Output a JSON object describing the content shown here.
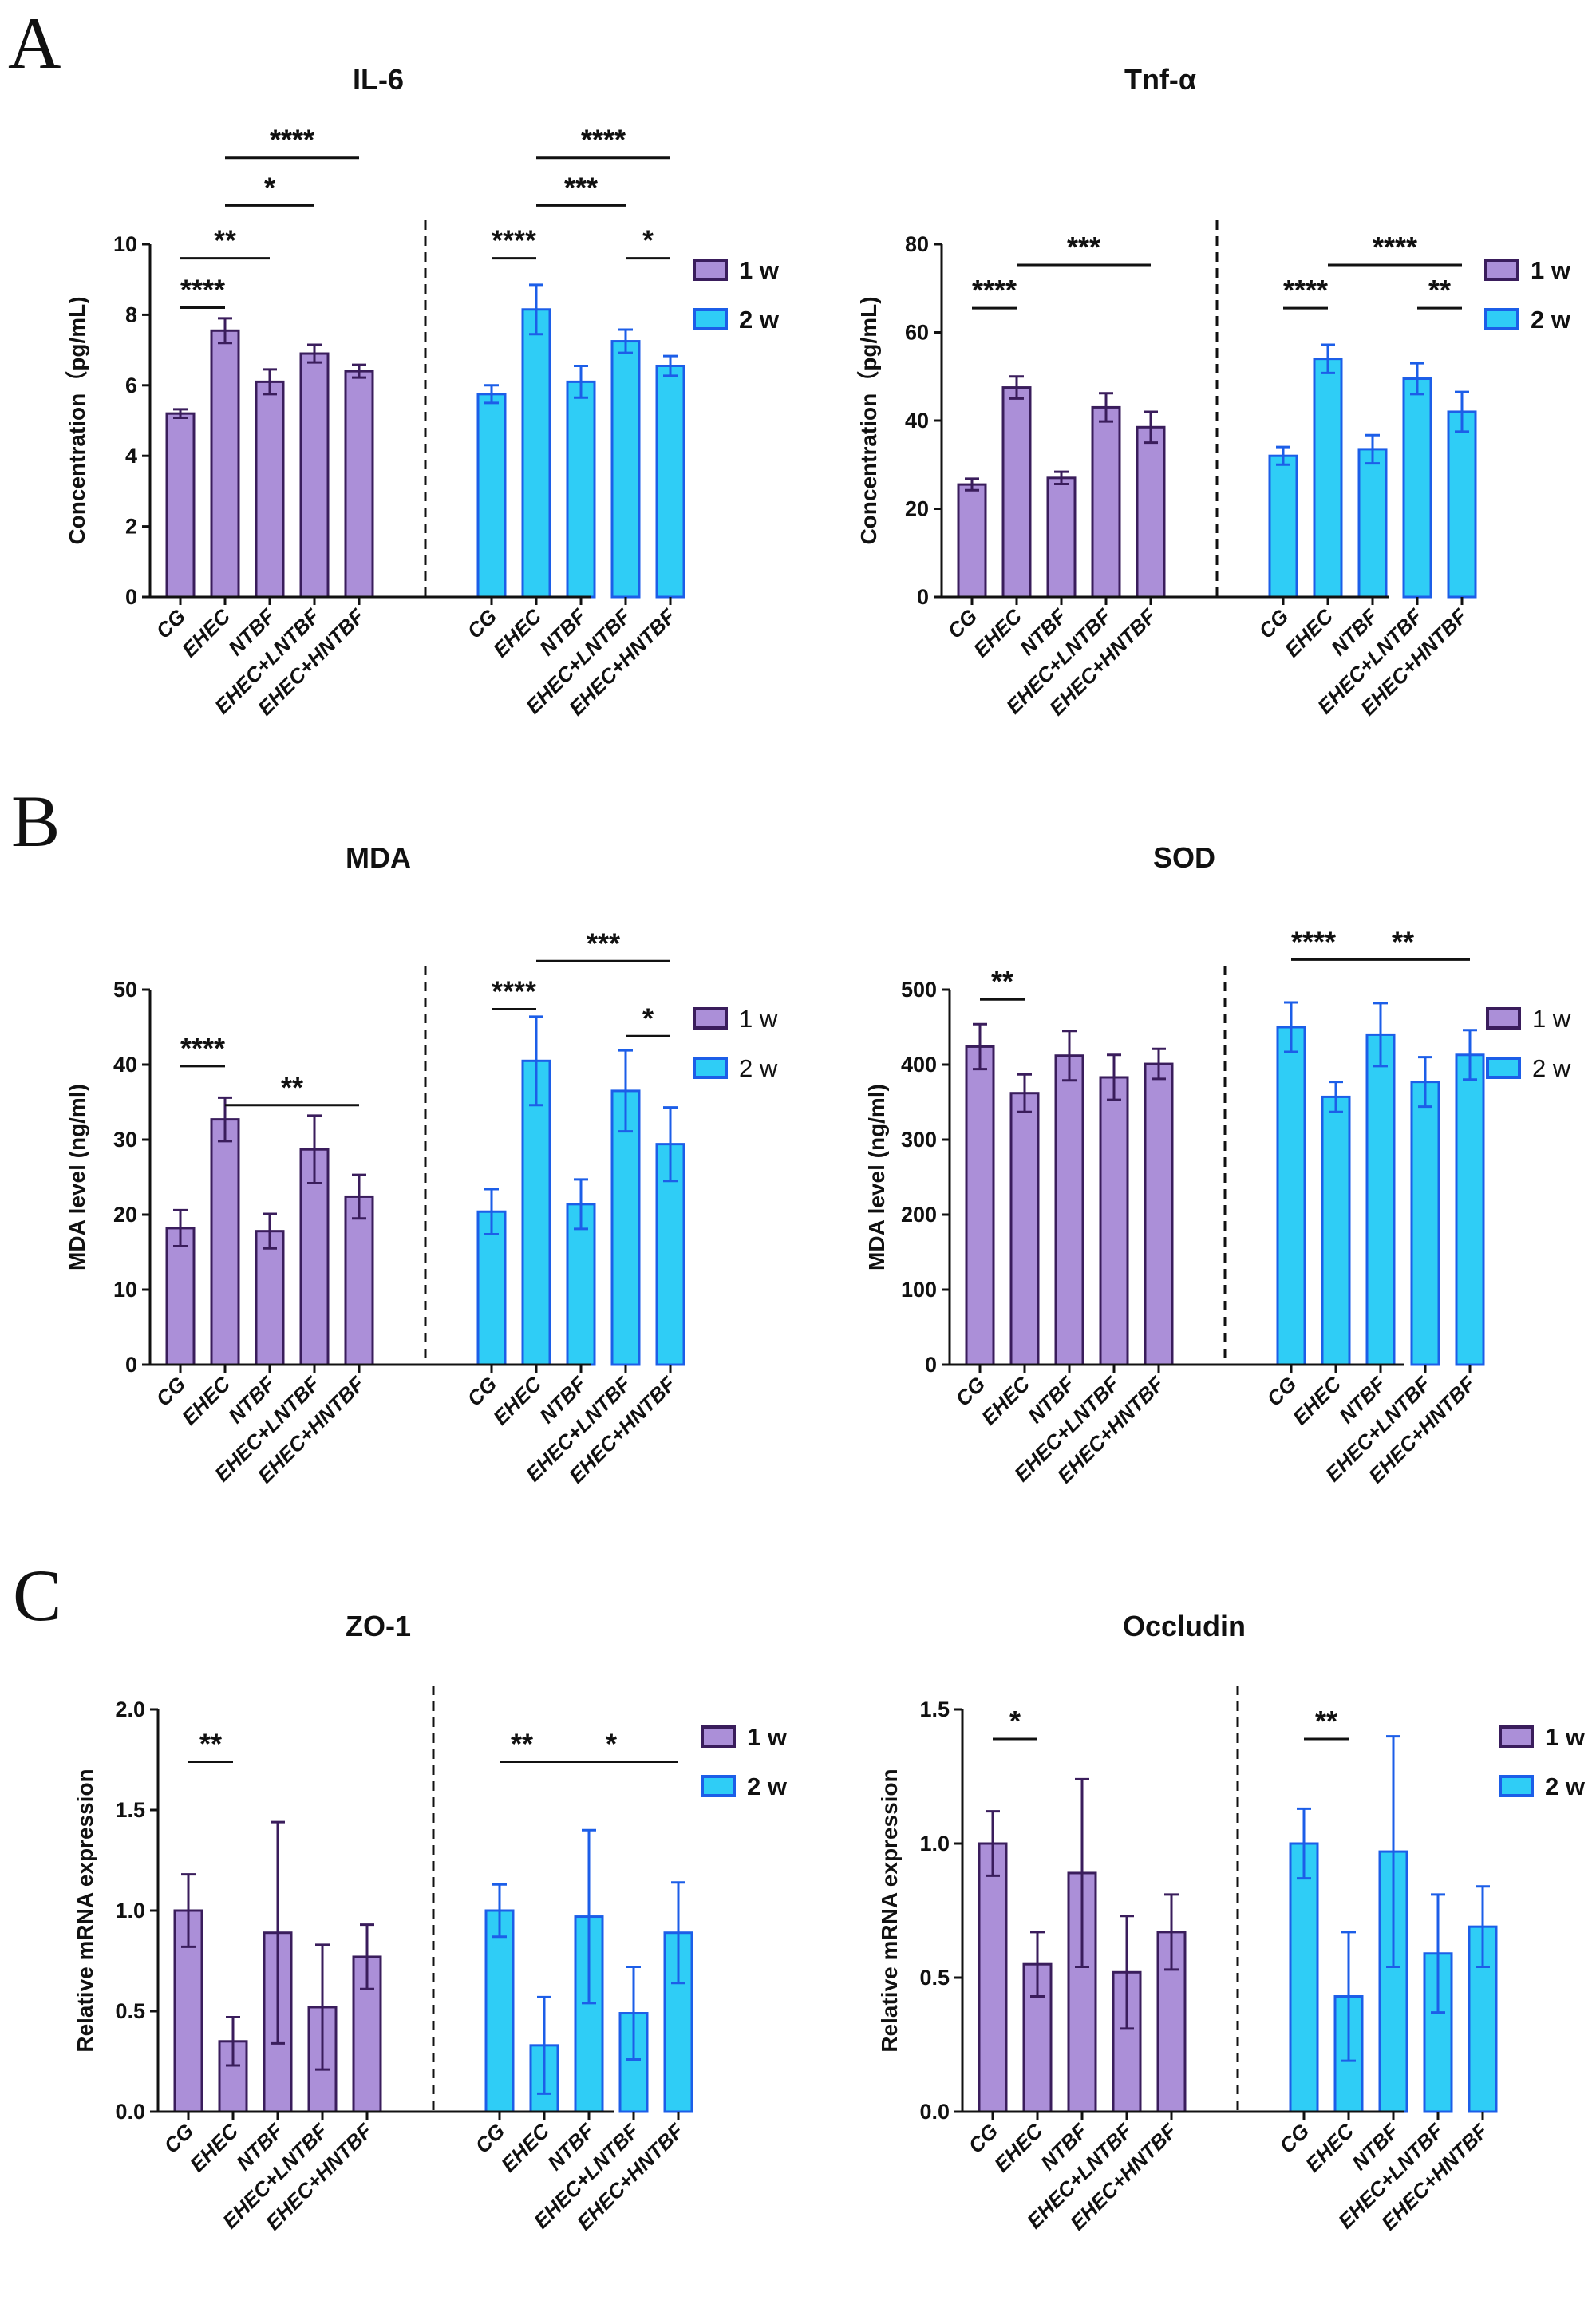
{
  "panel_labels": [
    "A",
    "B",
    "C"
  ],
  "colors": {
    "w1_fill": "#ab8fd8",
    "w1_edge": "#3a1d5c",
    "w2_fill": "#2fcdf6",
    "w2_edge": "#1c5ee8",
    "axis": "#111111"
  },
  "chart_data": [
    {
      "id": "il6",
      "panel": "A",
      "type": "bar",
      "title": "IL-6",
      "ylabel": "Concentration（pg/mL)",
      "ylim": [
        0,
        10
      ],
      "yticks": [
        "0",
        "2",
        "4",
        "6",
        "8",
        "10"
      ],
      "categories": [
        "CG",
        "EHEC",
        "NTBF",
        "EHEC+LNTBF",
        "EHEC+HNTBF"
      ],
      "legend_bold": true,
      "series": [
        {
          "name": "1 w",
          "values": [
            5.2,
            7.55,
            6.1,
            6.9,
            6.4
          ],
          "errors": [
            0.12,
            0.35,
            0.35,
            0.25,
            0.18
          ]
        },
        {
          "name": "2 w",
          "values": [
            5.75,
            8.15,
            6.1,
            7.25,
            6.55
          ],
          "errors": [
            0.25,
            0.7,
            0.45,
            0.33,
            0.28
          ]
        }
      ],
      "significance": [
        {
          "label": "****",
          "group": 0,
          "from": 0,
          "to": 1,
          "y": 8.2
        },
        {
          "label": "**",
          "group": 0,
          "from": 0,
          "to": 2,
          "y": 9.6
        },
        {
          "label": "*",
          "group": 0,
          "from": 1,
          "to": 3,
          "y": 11.1
        },
        {
          "label": "****",
          "group": 0,
          "from": 1,
          "to": 4,
          "y": 12.45
        },
        {
          "label": "****",
          "group": 1,
          "from": 0,
          "to": 1,
          "y": 9.6
        },
        {
          "label": "*",
          "group": 1,
          "from": 3,
          "to": 4,
          "y": 9.6
        },
        {
          "label": "***",
          "group": 1,
          "from": 1,
          "to": 3,
          "y": 11.1
        },
        {
          "label": "****",
          "group": 1,
          "from": 1,
          "to": 4,
          "y": 12.45
        }
      ]
    },
    {
      "id": "tnf",
      "panel": "A",
      "type": "bar",
      "title": "Tnf-α",
      "ylabel": "Concentration（pg/mL)",
      "ylim": [
        0,
        80
      ],
      "yticks": [
        "0",
        "20",
        "40",
        "60",
        "80"
      ],
      "categories": [
        "CG",
        "EHEC",
        "NTBF",
        "EHEC+LNTBF",
        "EHEC+HNTBF"
      ],
      "legend_bold": true,
      "series": [
        {
          "name": "1 w",
          "values": [
            25.5,
            47.5,
            27,
            43,
            38.5
          ],
          "errors": [
            1.3,
            2.5,
            1.4,
            3.2,
            3.5
          ]
        },
        {
          "name": "2 w",
          "values": [
            32,
            54,
            33.5,
            49.5,
            42
          ],
          "errors": [
            2.0,
            3.2,
            3.2,
            3.5,
            4.5
          ]
        }
      ],
      "significance": [
        {
          "label": "****",
          "group": 0,
          "from": 0,
          "to": 1,
          "y": 65.5
        },
        {
          "label": "***",
          "group": 0,
          "from": 1,
          "to": 4,
          "y": 75.3
        },
        {
          "label": "****",
          "group": 1,
          "from": 0,
          "to": 1,
          "y": 65.5
        },
        {
          "label": "**",
          "group": 1,
          "from": 3,
          "to": 4,
          "y": 65.5
        },
        {
          "label": "****",
          "group": 1,
          "from": 1,
          "to": 4,
          "y": 75.3
        }
      ]
    },
    {
      "id": "mda",
      "panel": "B",
      "type": "bar",
      "title": "MDA",
      "ylabel": "MDA level (ng/ml)",
      "ylim": [
        0,
        50
      ],
      "yticks": [
        "0",
        "10",
        "20",
        "30",
        "40",
        "50"
      ],
      "categories": [
        "CG",
        "EHEC",
        "NTBF",
        "EHEC+LNTBF",
        "EHEC+HNTBF"
      ],
      "legend_bold": false,
      "series": [
        {
          "name": "1 w",
          "values": [
            18.2,
            32.7,
            17.8,
            28.7,
            22.4
          ],
          "errors": [
            2.4,
            2.9,
            2.3,
            4.5,
            2.9
          ]
        },
        {
          "name": "2 w",
          "values": [
            20.4,
            40.5,
            21.4,
            36.5,
            29.4
          ],
          "errors": [
            3.0,
            5.9,
            3.3,
            5.4,
            4.9
          ]
        }
      ],
      "significance": [
        {
          "label": "****",
          "group": 0,
          "from": 0,
          "to": 1,
          "y": 39.8
        },
        {
          "label": "**",
          "group": 0,
          "from": 1,
          "to": 4,
          "y": 34.6
        },
        {
          "label": "****",
          "group": 1,
          "from": 0,
          "to": 1,
          "y": 47.4
        },
        {
          "label": "***",
          "group": 1,
          "from": 1,
          "to": 4,
          "y": 53.8
        },
        {
          "label": "*",
          "group": 1,
          "from": 3,
          "to": 4,
          "y": 43.8
        }
      ]
    },
    {
      "id": "sod",
      "panel": "B",
      "type": "bar",
      "title": "SOD",
      "ylabel": "MDA level (ng/ml)",
      "ylim": [
        0,
        500
      ],
      "yticks": [
        "0",
        "100",
        "200",
        "300",
        "400",
        "500"
      ],
      "categories": [
        "CG",
        "EHEC",
        "NTBF",
        "EHEC+LNTBF",
        "EHEC+HNTBF"
      ],
      "legend_bold": false,
      "series": [
        {
          "name": "1 w",
          "values": [
            424,
            362,
            412,
            383,
            401
          ],
          "errors": [
            30,
            25,
            33,
            30,
            20
          ]
        },
        {
          "name": "2 w",
          "values": [
            450,
            357,
            440,
            377,
            413
          ],
          "errors": [
            33,
            20,
            42,
            33,
            33
          ]
        }
      ],
      "significance": [
        {
          "label": "**",
          "group": 0,
          "from": 0,
          "to": 1,
          "y": 487
        },
        {
          "label": "****",
          "group": 1,
          "from": 0,
          "to": 1,
          "y": 540
        },
        {
          "label": "**",
          "group": 1,
          "from": 1,
          "to": 4,
          "y": 540
        }
      ]
    },
    {
      "id": "zo1",
      "panel": "C",
      "type": "bar",
      "title": "ZO-1",
      "ylabel": "Relative mRNA expression",
      "ylim": [
        0,
        2.0
      ],
      "yticks": [
        "0.0",
        "0.5",
        "1.0",
        "1.5",
        "2.0"
      ],
      "categories": [
        "CG",
        "EHEC",
        "NTBF",
        "EHEC+LNTBF",
        "EHEC+HNTBF"
      ],
      "legend_bold": true,
      "series": [
        {
          "name": "1 w",
          "values": [
            1.0,
            0.35,
            0.89,
            0.52,
            0.77
          ],
          "errors": [
            0.18,
            0.12,
            0.55,
            0.31,
            0.16
          ]
        },
        {
          "name": "2 w",
          "values": [
            1.0,
            0.33,
            0.97,
            0.49,
            0.89
          ],
          "errors": [
            0.13,
            0.24,
            0.43,
            0.23,
            0.25
          ]
        }
      ],
      "significance": [
        {
          "label": "**",
          "group": 0,
          "from": 0,
          "to": 1,
          "y": 1.74
        },
        {
          "label": "**",
          "group": 1,
          "from": 0,
          "to": 1,
          "y": 1.74
        },
        {
          "label": "*",
          "group": 1,
          "from": 1,
          "to": 4,
          "y": 1.74
        }
      ]
    },
    {
      "id": "occludin",
      "panel": "C",
      "type": "bar",
      "title": "Occludin",
      "ylabel": "Relative mRNA expression",
      "ylim": [
        0,
        1.5
      ],
      "yticks": [
        "0.0",
        "0.5",
        "1.0",
        "1.5"
      ],
      "categories": [
        "CG",
        "EHEC",
        "NTBF",
        "EHEC+LNTBF",
        "EHEC+HNTBF"
      ],
      "legend_bold": true,
      "series": [
        {
          "name": "1 w",
          "values": [
            1.0,
            0.55,
            0.89,
            0.52,
            0.67
          ],
          "errors": [
            0.12,
            0.12,
            0.35,
            0.21,
            0.14
          ]
        },
        {
          "name": "2 w",
          "values": [
            1.0,
            0.43,
            0.97,
            0.59,
            0.69
          ],
          "errors": [
            0.13,
            0.24,
            0.43,
            0.22,
            0.15
          ]
        }
      ],
      "significance": [
        {
          "label": "*",
          "group": 0,
          "from": 0,
          "to": 1,
          "y": 1.39
        },
        {
          "label": "**",
          "group": 1,
          "from": 0,
          "to": 1,
          "y": 1.39
        }
      ]
    }
  ]
}
